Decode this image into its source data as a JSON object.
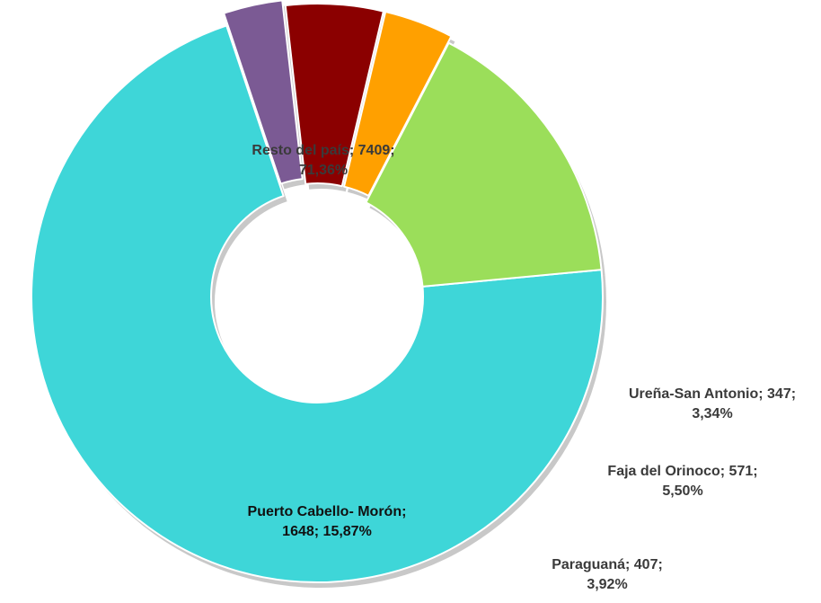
{
  "chart_data": {
    "type": "pie",
    "variant": "donut",
    "legend": "none",
    "slices": [
      {
        "label": "Resto del país",
        "value": 7409,
        "percent": "71,36%",
        "color": "#3ed6d8",
        "label_line1": "Resto del país; 7409;",
        "label_line2": "71,36%"
      },
      {
        "label": "Ureña-San Antonio",
        "value": 347,
        "percent": "3,34%",
        "color": "#7b5a94",
        "label_line1": "Ureña-San Antonio; 347;",
        "label_line2": "3,34%"
      },
      {
        "label": "Faja del Orinoco",
        "value": 571,
        "percent": "5,50%",
        "color": "#8b0000",
        "label_line1": "Faja del Orinoco; 571;",
        "label_line2": "5,50%"
      },
      {
        "label": "Paraguaná",
        "value": 407,
        "percent": "3,92%",
        "color": "#ffa000",
        "label_line1": "Paraguaná; 407;",
        "label_line2": "3,92%"
      },
      {
        "label": "Puerto Cabello- Morón",
        "value": 1648,
        "percent": "15,87%",
        "color": "#9bde5a",
        "label_line1": "Puerto Cabello- Morón;",
        "label_line2": "1648; 15,87%"
      }
    ]
  }
}
